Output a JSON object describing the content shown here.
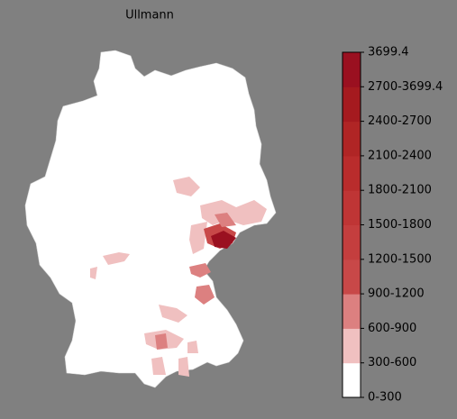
{
  "title": "Ullmann",
  "legend": {
    "labels": [
      "0-300",
      "300-600",
      "600-900",
      "900-1200",
      "1200-1500",
      "1500-1800",
      "1800-2100",
      "2100-2400",
      "2400-2700",
      "2700-3699.4",
      "3699.4"
    ],
    "colors": [
      "#ffffff",
      "#f0c0c0",
      "#dc8080",
      "#c84848",
      "#c43e3e",
      "#bf3535",
      "#b92c2c",
      "#b02525",
      "#a51a1f",
      "#9a1020"
    ]
  }
}
